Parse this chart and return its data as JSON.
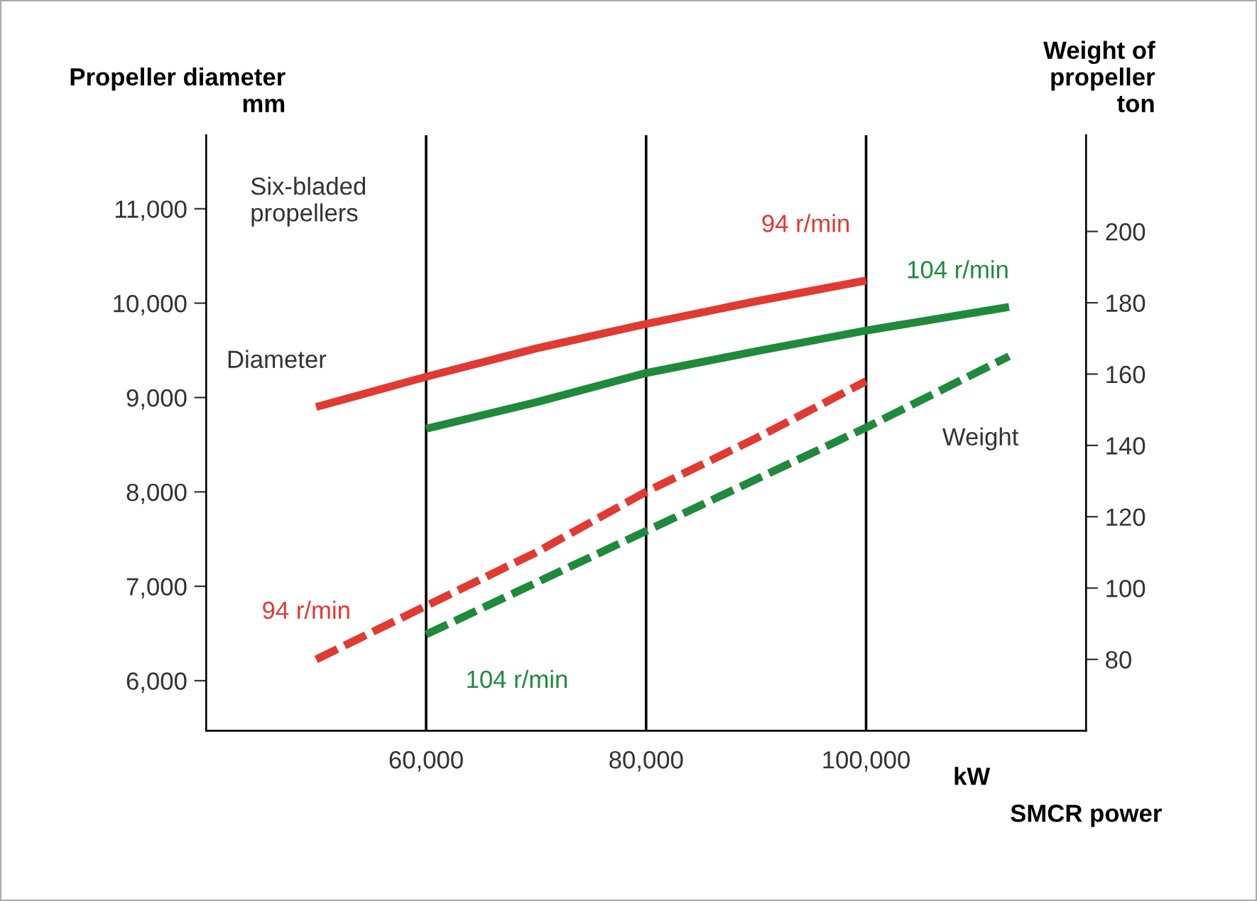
{
  "chart_data": {
    "type": "line",
    "xlabel": "SMCR power",
    "ylabel": "Propeller diameter\nmm",
    "y2label": "Weight of\npropeller\nton",
    "annotations": [
      "Six-bladed\npropellers",
      "Diameter",
      "Weight",
      "kW"
    ],
    "xlim": [
      40000,
      120000
    ],
    "xticks": [
      {
        "value": 60000,
        "label": "60,000"
      },
      {
        "value": 80000,
        "label": "80,000"
      },
      {
        "value": 100000,
        "label": "100,000"
      }
    ],
    "ylim": [
      5470,
      11780
    ],
    "yticks": [
      {
        "value": 6000,
        "label": "6,000"
      },
      {
        "value": 7000,
        "label": "7,000"
      },
      {
        "value": 8000,
        "label": "8,000"
      },
      {
        "value": 9000,
        "label": "9,000"
      },
      {
        "value": 10000,
        "label": "10,000"
      },
      {
        "value": 11000,
        "label": "11,000"
      }
    ],
    "y2lim": [
      60,
      227
    ],
    "y2ticks": [
      80,
      100,
      120,
      140,
      160,
      180,
      200
    ],
    "grid": "x",
    "marker": "none",
    "series": [
      {
        "name": "94 r/min",
        "color": "#e03a32",
        "line_style": "solid",
        "x": [
          50000,
          60000,
          70000,
          80000,
          90000,
          100000
        ],
        "values": [
          8900,
          9220,
          9520,
          9780,
          10020,
          10240
        ]
      },
      {
        "name": "104 r/min",
        "color": "#1f8a3c",
        "line_style": "solid",
        "x": [
          60000,
          70000,
          80000,
          90000,
          100000,
          113000
        ],
        "values": [
          8670,
          8950,
          9260,
          9490,
          9710,
          9960
        ]
      },
      {
        "name": "94 r/min",
        "color": "#e03a32",
        "line_style": "dashed",
        "axis": "y2",
        "x": [
          50000,
          60000,
          70000,
          80000,
          90000,
          100000
        ],
        "values": [
          80,
          95,
          110,
          127,
          142,
          158
        ]
      },
      {
        "name": "104 r/min",
        "color": "#1f8a3c",
        "line_style": "dashed",
        "axis": "y2",
        "x": [
          60000,
          80000,
          100000,
          113000
        ],
        "values": [
          87,
          116,
          145,
          165
        ]
      }
    ]
  }
}
